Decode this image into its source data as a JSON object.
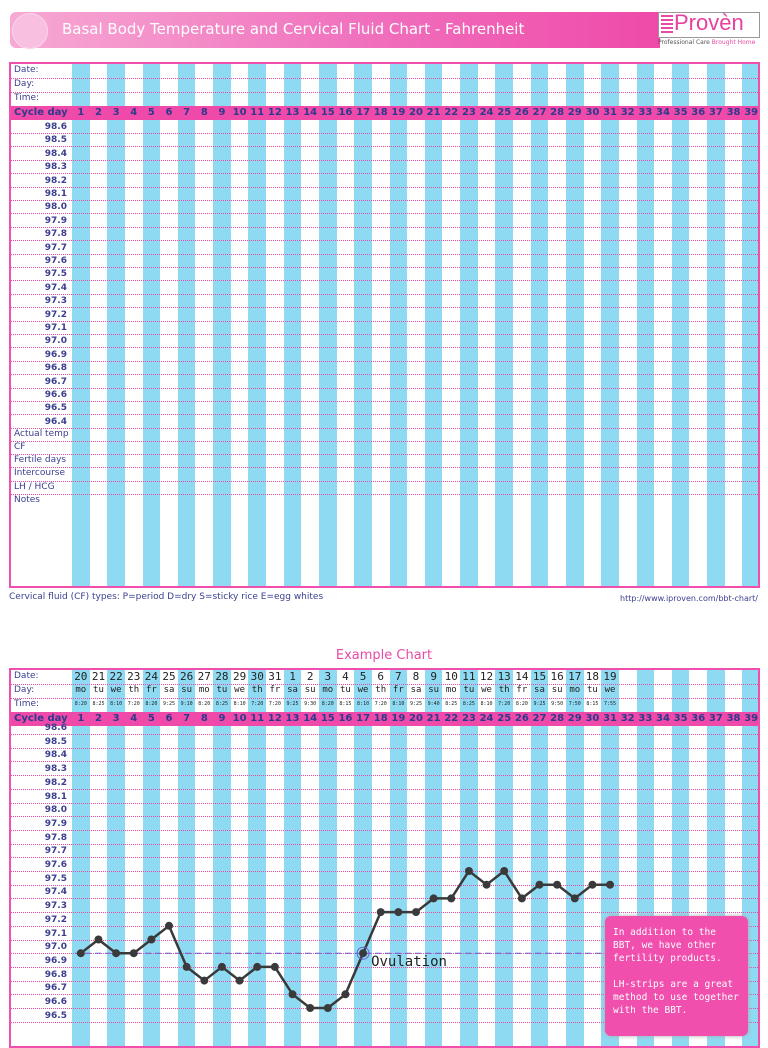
{
  "header": {
    "title": "Basal Body Temperature and Cervical Fluid Chart - Fahrenheit"
  },
  "logo": {
    "text": "Provèn",
    "tagline_a": "Professional Care",
    "tagline_b": "Brought Home"
  },
  "colors": {
    "pink": "#ef4aa9",
    "stripe": "#8edaf2",
    "line": "#3a3a3a",
    "text": "#3a3f8f"
  },
  "row_labels": {
    "date": "Date:",
    "day": "Day:",
    "time": "Time:",
    "cycle_day": "Cycle day"
  },
  "bottom_rows": [
    "Actual temp",
    "CF",
    "Fertile days",
    "Intercourse",
    "LH / HCG",
    "Notes"
  ],
  "footer": {
    "cf_types": "Cervical fluid (CF) types: P=period  D=dry  S=sticky rice  E=egg whites",
    "url": "http://www.iproven.com/bbt-chart/"
  },
  "example": {
    "title": "Example Chart",
    "dates": [
      "20",
      "21",
      "22",
      "23",
      "24",
      "25",
      "26",
      "27",
      "28",
      "29",
      "30",
      "31",
      "1",
      "2",
      "3",
      "4",
      "5",
      "6",
      "7",
      "8",
      "9",
      "10",
      "11",
      "12",
      "13",
      "14",
      "15",
      "16",
      "17",
      "18",
      "19"
    ],
    "days": [
      "mo",
      "tu",
      "we",
      "th",
      "fr",
      "sa",
      "su",
      "mo",
      "tu",
      "we",
      "th",
      "fr",
      "sa",
      "su",
      "mo",
      "tu",
      "we",
      "th",
      "fr",
      "sa",
      "su",
      "mo",
      "tu",
      "we",
      "th",
      "fr",
      "sa",
      "su",
      "mo",
      "tu",
      "we"
    ],
    "times": [
      "8:20",
      "8:25",
      "8:10",
      "7:20",
      "8:20",
      "9:25",
      "9:10",
      "8:20",
      "8:25",
      "8:10",
      "7:20",
      "7:20",
      "9:25",
      "9:30",
      "8:20",
      "8:15",
      "8:10",
      "7:20",
      "8:10",
      "9:25",
      "9:40",
      "8:25",
      "8:25",
      "8:10",
      "7:20",
      "8:20",
      "9:25",
      "9:50",
      "7:50",
      "8:15",
      "7:55"
    ],
    "ovulation_label": "Ovulation",
    "callout": [
      "In addition to the BBT, we have other fertility products.",
      "LH-strips are a great method to use together with the BBT."
    ]
  },
  "chart_data": [
    {
      "type": "table",
      "title": "Basal Body Temperature and Cervical Fluid Chart - Fahrenheit",
      "cycle_days": [
        1,
        2,
        3,
        4,
        5,
        6,
        7,
        8,
        9,
        10,
        11,
        12,
        13,
        14,
        15,
        16,
        17,
        18,
        19,
        20,
        21,
        22,
        23,
        24,
        25,
        26,
        27,
        28,
        29,
        30,
        31,
        32,
        33,
        34,
        35,
        36,
        37,
        38,
        39
      ],
      "temperature_ticks": [
        "98.6",
        "98.5",
        "98.4",
        "98.3",
        "98.2",
        "98.1",
        "98.0",
        "97.9",
        "97.8",
        "97.7",
        "97.6",
        "97.5",
        "97.4",
        "97.3",
        "97.2",
        "97.1",
        "97.0",
        "96.9",
        "96.8",
        "96.7",
        "96.6",
        "96.5",
        "96.4"
      ],
      "values": []
    },
    {
      "type": "line",
      "title": "Example Chart",
      "xlabel": "Cycle day",
      "cycle_days": [
        1,
        2,
        3,
        4,
        5,
        6,
        7,
        8,
        9,
        10,
        11,
        12,
        13,
        14,
        15,
        16,
        17,
        18,
        19,
        20,
        21,
        22,
        23,
        24,
        25,
        26,
        27,
        28,
        29,
        30,
        31,
        32,
        33,
        34,
        35,
        36,
        37,
        38,
        39
      ],
      "temperature_ticks": [
        "98.6",
        "98.5",
        "98.4",
        "98.3",
        "98.2",
        "98.1",
        "98.0",
        "97.9",
        "97.8",
        "97.7",
        "97.6",
        "97.5",
        "97.4",
        "97.3",
        "97.2",
        "97.1",
        "97.0",
        "96.9",
        "96.8",
        "96.7",
        "96.6",
        "96.5"
      ],
      "ylim": [
        96.5,
        98.6
      ],
      "x": [
        1,
        2,
        3,
        4,
        5,
        6,
        7,
        8,
        9,
        10,
        11,
        12,
        13,
        14,
        15,
        16,
        17,
        18,
        19,
        20,
        21,
        22,
        23,
        24,
        25,
        26,
        27,
        28,
        29,
        30,
        31
      ],
      "y": [
        97.0,
        97.1,
        97.0,
        97.0,
        97.1,
        97.2,
        96.9,
        96.8,
        96.9,
        96.8,
        96.9,
        96.9,
        96.7,
        96.6,
        96.6,
        96.7,
        97.0,
        97.3,
        97.3,
        97.3,
        97.4,
        97.4,
        97.6,
        97.5,
        97.6,
        97.4,
        97.5,
        97.5,
        97.4,
        97.5,
        97.5
      ],
      "ovulation": {
        "cycle_day": 17,
        "temperature": 97.0
      }
    }
  ]
}
